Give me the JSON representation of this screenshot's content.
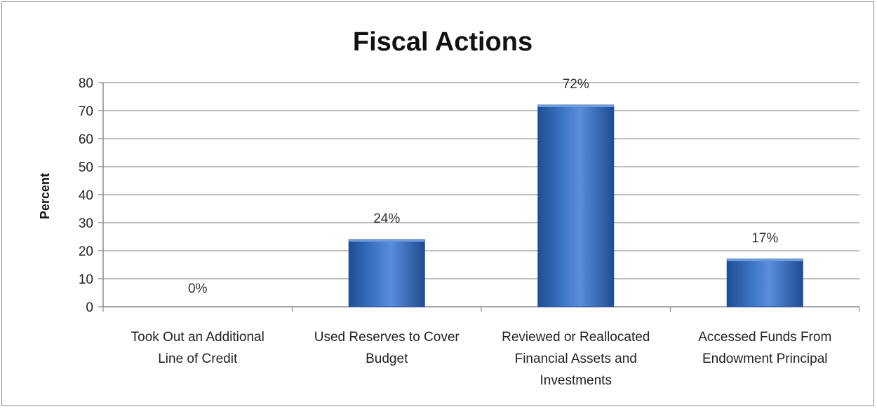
{
  "chart_data": {
    "type": "bar",
    "title": "Fiscal Actions",
    "xlabel": "",
    "ylabel": "Percent",
    "ylim": [
      0,
      80
    ],
    "yticks": [
      0,
      10,
      20,
      30,
      40,
      50,
      60,
      70,
      80
    ],
    "grid": true,
    "legend": "none",
    "categories": [
      [
        "Took Out an Additional",
        "Line of Credit"
      ],
      [
        "Used Reserves to Cover",
        "Budget"
      ],
      [
        "Reviewed or Reallocated",
        "Financial Assets and",
        "Investments"
      ],
      [
        "Accessed Funds From",
        "Endowment Principal"
      ]
    ],
    "values": [
      0,
      24,
      72,
      17
    ],
    "data_labels": [
      "0%",
      "24%",
      "72%",
      "17%"
    ],
    "colors": {
      "bar": "#3a6fbf",
      "bar_dark": "#1f4d94",
      "bar_light": "#6f9be0",
      "grid": "#9a9a9a"
    }
  }
}
